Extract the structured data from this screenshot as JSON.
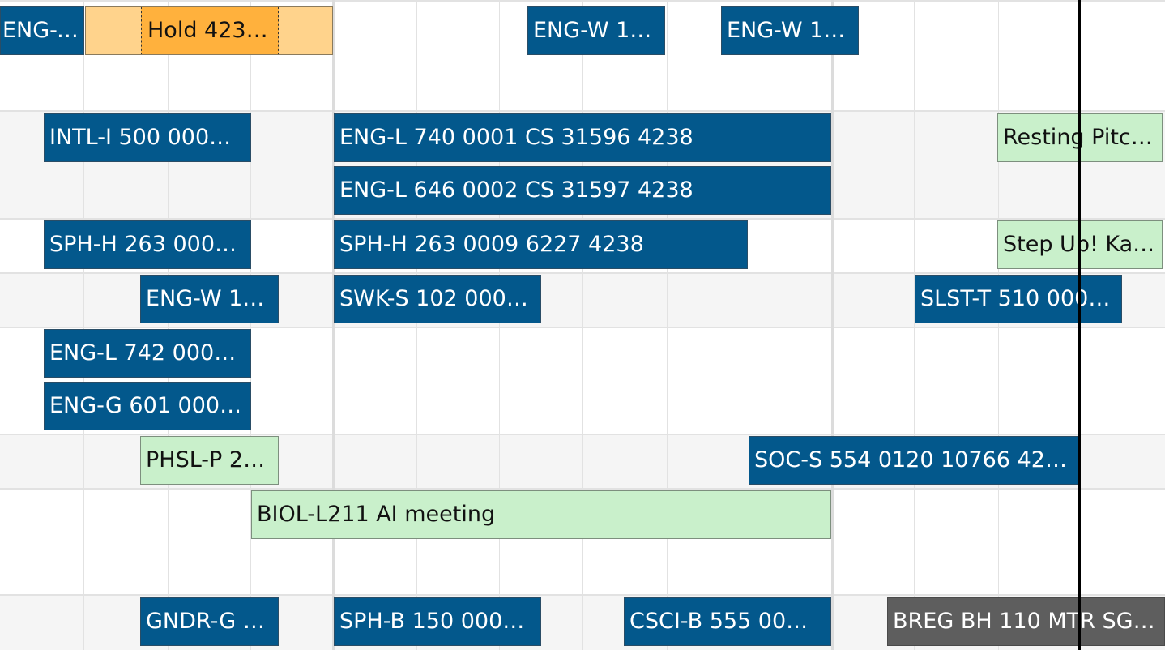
{
  "colors": {
    "course_event": "#03588c",
    "meeting_event": "#c9f0cb",
    "hold_outer": "#ffd38c",
    "hold_core": "#ffb13d",
    "closed_event": "#5e5e5e",
    "now_line": "#000000"
  },
  "events": {
    "row1_a": "ENG-W 13…",
    "row1_b": "ENG-W 13…",
    "row1_c": "ENG-W 13…",
    "row3_a": "INTL-I 500 000…",
    "row3_b": "ENG-L 740 0001 CS 31596 4238",
    "row3_c": "Resting Pitc…",
    "row4_a": "ENG-L 646 0002 CS 31597 4238",
    "row5_a": "SPH-H 263 000…",
    "row5_b": "SPH-H 263 0009 6227 4238",
    "row5_c": "Step Up! Ka…",
    "row6_a": "ENG-W 13…",
    "row6_b": "SWK-S 102 000…",
    "row6_c": "SLST-T 510 000…",
    "row7_a": "ENG-L 742 000…",
    "row8_a": "ENG-G 601 000…",
    "row9_a": "PHSL-P 2…",
    "row9_b": "SOC-S 554 0120 10766 42…",
    "row10_a": "BIOL-L211 AI meeting",
    "row12_a": "GNDR-G 1…",
    "row12_b": "SPH-B 150 000…",
    "row12_c": "CSCI-B 555 00…",
    "row12_d": "BREG BH 110 MTR SG …"
  },
  "hold": {
    "label": "Hold 423…"
  }
}
